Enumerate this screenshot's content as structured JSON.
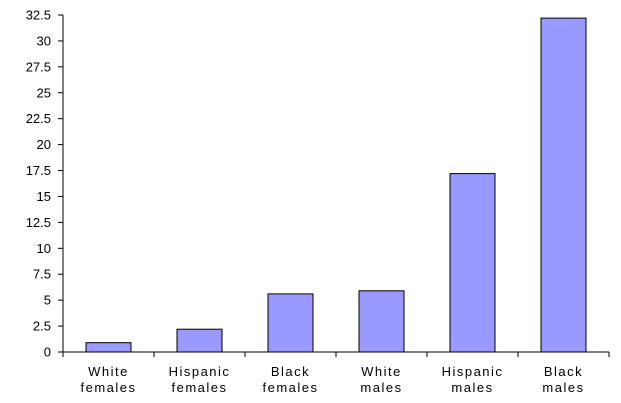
{
  "chart_data": {
    "type": "bar",
    "categories": [
      [
        "White",
        "females"
      ],
      [
        "Hispanic",
        "females"
      ],
      [
        "Black",
        "females"
      ],
      [
        "White",
        "males"
      ],
      [
        "Hispanic",
        "males"
      ],
      [
        "Black",
        "males"
      ]
    ],
    "values": [
      0.9,
      2.2,
      5.6,
      5.9,
      17.2,
      32.2
    ],
    "ylim": [
      0,
      32.5
    ],
    "yticks": [
      0,
      2.5,
      5,
      7.5,
      10,
      12.5,
      15,
      17.5,
      20,
      22.5,
      25,
      27.5,
      30,
      32.5
    ],
    "title": "",
    "xlabel": "",
    "ylabel": "",
    "grid": false,
    "legend": "none",
    "bar_color": "#9999ff",
    "bar_edge_color": "#000000",
    "axis_color": "#000000"
  }
}
